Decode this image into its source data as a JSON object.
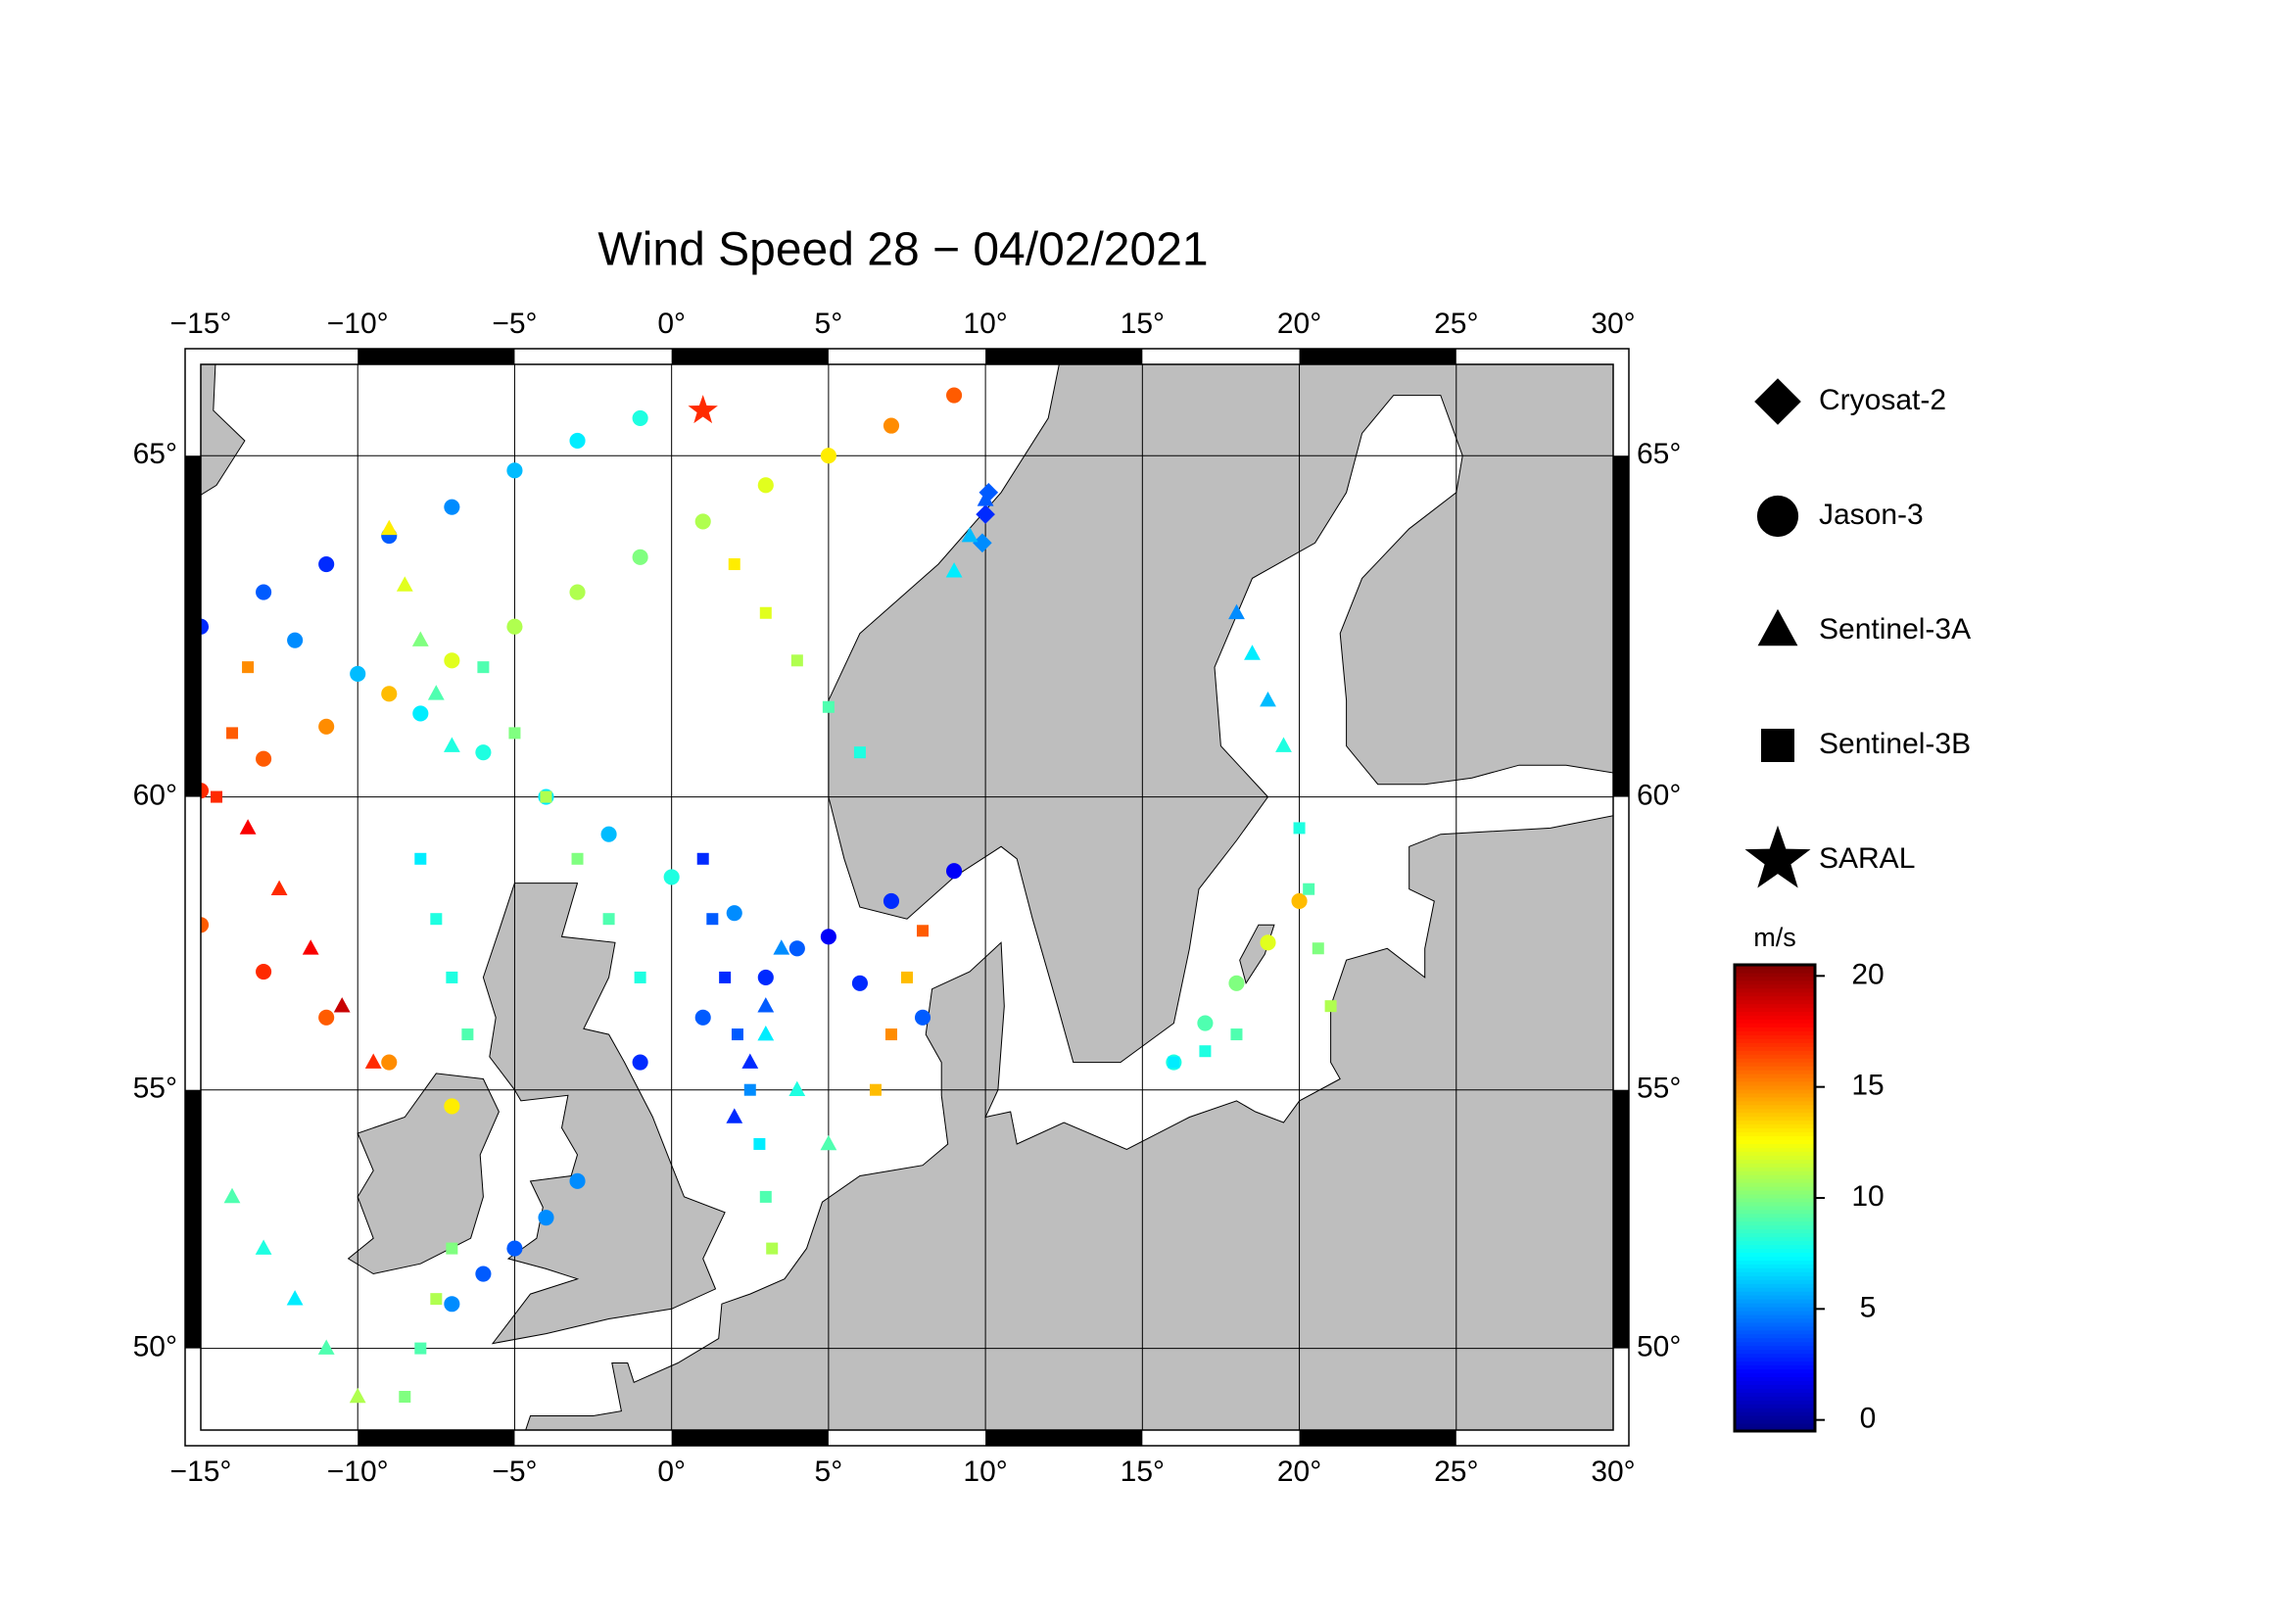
{
  "chart_data": {
    "type": "map-scatter",
    "title": "Wind Speed 28 − 04/02/2021",
    "projection": "mercator",
    "xlim": [
      -15,
      30
    ],
    "ylim": [
      48.3,
      66.2
    ],
    "xticks": [
      {
        "value": -15,
        "label": "−15°"
      },
      {
        "value": -10,
        "label": "−10°"
      },
      {
        "value": -5,
        "label": "−5°"
      },
      {
        "value": 0,
        "label": "0°"
      },
      {
        "value": 5,
        "label": "5°"
      },
      {
        "value": 10,
        "label": "10°"
      },
      {
        "value": 15,
        "label": "15°"
      },
      {
        "value": 20,
        "label": "20°"
      },
      {
        "value": 25,
        "label": "25°"
      },
      {
        "value": 30,
        "label": "30°"
      }
    ],
    "yticks": [
      {
        "value": 50,
        "label": "50°"
      },
      {
        "value": 55,
        "label": "55°"
      },
      {
        "value": 60,
        "label": "60°"
      },
      {
        "value": 65,
        "label": "65°"
      }
    ],
    "grid": true,
    "colorbar": {
      "label": "m/s",
      "colormap": "jet",
      "lim": [
        -0.5,
        20.5
      ],
      "ticks": [
        0,
        5,
        10,
        15,
        20
      ]
    },
    "series": [
      {
        "name": "Cryosat-2",
        "marker": "diamond",
        "lon": [
          10,
          10.1,
          9.9
        ],
        "lat": [
          64.2,
          64.5,
          63.8
        ],
        "values": [
          3,
          4,
          5
        ]
      },
      {
        "name": "Jason-3",
        "marker": "circle",
        "lon": [
          -15,
          -13,
          -11,
          -9,
          -7,
          -5,
          -3,
          -1,
          -15,
          -13,
          -11,
          -9,
          -7,
          -5,
          -3,
          -1,
          1,
          3,
          5,
          7,
          9,
          -12,
          -10,
          -8,
          -6,
          -4,
          -2,
          0,
          2,
          4,
          6,
          8,
          -1,
          1,
          3,
          5,
          7,
          9,
          -15,
          -13,
          -11,
          -9,
          -7,
          -3,
          -4,
          -5,
          -6,
          -7,
          16,
          17,
          18,
          19,
          20
        ],
        "lat": [
          62.6,
          63.1,
          63.5,
          63.9,
          64.3,
          64.8,
          65.2,
          65.5,
          60.1,
          60.6,
          61.1,
          61.6,
          62.1,
          62.6,
          63.1,
          63.6,
          64.1,
          64.6,
          65.0,
          65.4,
          65.8,
          62.4,
          61.9,
          61.3,
          60.7,
          60.0,
          59.4,
          58.7,
          58.1,
          57.5,
          56.9,
          56.3,
          55.5,
          56.3,
          57.0,
          57.7,
          58.3,
          58.8,
          57.9,
          57.1,
          56.3,
          55.5,
          54.7,
          53.3,
          52.6,
          52.0,
          51.5,
          50.9,
          55.5,
          56.2,
          56.9,
          57.6,
          58.3
        ],
        "values": [
          3,
          4,
          3,
          4,
          5,
          6,
          7,
          8,
          17,
          16,
          15,
          14,
          12,
          11,
          11,
          10,
          11,
          12,
          13,
          15,
          16,
          5,
          6,
          7,
          8,
          7,
          6,
          8,
          5,
          4,
          3,
          4,
          3,
          4,
          3,
          2,
          3,
          2,
          16,
          17,
          16,
          15,
          13,
          5,
          5,
          4,
          4,
          5,
          8,
          9,
          10,
          12,
          14
        ]
      },
      {
        "name": "Sentinel-3A",
        "marker": "triangle",
        "lon": [
          -13.5,
          -12.5,
          -11.5,
          -10.5,
          -9.5,
          -14,
          -13,
          -12,
          -11,
          -10,
          2,
          2.5,
          3,
          3.5,
          5,
          4,
          3,
          18,
          18.5,
          19,
          19.5,
          -9,
          -8.5,
          -8,
          -7.5,
          -7,
          10,
          9.5,
          9
        ],
        "lat": [
          59.5,
          58.5,
          57.5,
          56.5,
          55.5,
          53,
          52,
          51,
          50,
          49,
          54.5,
          55.5,
          56.5,
          57.5,
          54,
          55,
          56,
          62.8,
          62.2,
          61.5,
          60.8,
          64,
          63.2,
          62.4,
          61.6,
          60.8,
          64.4,
          63.9,
          63.4
        ],
        "values": [
          18,
          17,
          18,
          19,
          17,
          9,
          8,
          7,
          9,
          11,
          3,
          3,
          4,
          5,
          9,
          8,
          7,
          5,
          7,
          6,
          8,
          13,
          12,
          10,
          9,
          8,
          4,
          6,
          7
        ]
      },
      {
        "name": "Sentinel-3B",
        "marker": "square",
        "lon": [
          1,
          1.3,
          1.7,
          2.1,
          2.5,
          2.8,
          3.0,
          3.2,
          6.5,
          7,
          7.5,
          8,
          -6,
          -5,
          -4,
          -3,
          -2,
          -1,
          -13.5,
          -14,
          -14.5,
          -8,
          -7.5,
          -7,
          -6.5,
          -7,
          -7.5,
          -8,
          -8.5,
          20,
          20.3,
          20.6,
          21,
          16,
          17,
          18,
          2,
          3,
          4,
          5,
          6
        ],
        "lat": [
          59,
          58,
          57,
          56,
          55,
          54,
          53,
          52,
          55,
          56,
          57,
          57.8,
          62,
          61,
          60,
          59,
          58,
          57,
          62,
          61,
          60,
          59,
          58,
          57,
          56,
          52,
          51,
          50,
          49,
          59.5,
          58.5,
          57.5,
          56.5,
          55.5,
          55.7,
          56,
          63.5,
          62.8,
          62.1,
          61.4,
          60.7
        ],
        "values": [
          3,
          4,
          3,
          4,
          5,
          7,
          9,
          11,
          14,
          15,
          14,
          16,
          9,
          10,
          11,
          10,
          9,
          8,
          15,
          16,
          17,
          7,
          8,
          8,
          9,
          10,
          11,
          9,
          10,
          8,
          9,
          10,
          11,
          7,
          8,
          9,
          13,
          12,
          11,
          9,
          8
        ]
      },
      {
        "name": "SARAL",
        "marker": "star",
        "lon": [
          1
        ],
        "lat": [
          65.6
        ],
        "values": [
          17
        ]
      }
    ]
  }
}
